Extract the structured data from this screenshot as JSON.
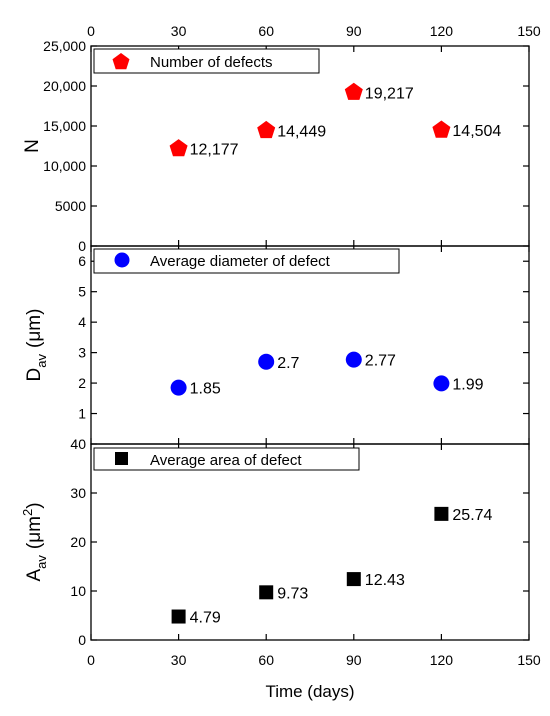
{
  "chart_data": [
    {
      "type": "scatter",
      "panel": "top",
      "ylabel": "N",
      "ylim": [
        0,
        25000
      ],
      "yticks": [
        {
          "value": 0,
          "label": "0"
        },
        {
          "value": 5000,
          "label": "5000"
        },
        {
          "value": 10000,
          "label": "10,000"
        },
        {
          "value": 15000,
          "label": "15,000"
        },
        {
          "value": 20000,
          "label": "20,000"
        },
        {
          "value": 25000,
          "label": "25,000"
        }
      ],
      "xlim": [
        0,
        150
      ],
      "xticks_top": [
        "0",
        "30",
        "60",
        "90",
        "120",
        "150"
      ],
      "legend": {
        "label": "Number of defects",
        "marker": "pentagon",
        "color": "#ff0000",
        "position": "top-left"
      },
      "series": [
        {
          "marker": "pentagon",
          "color": "#ff0000",
          "x": [
            30,
            60,
            90,
            120
          ],
          "y": [
            12177,
            14449,
            19217,
            14504
          ],
          "labels": [
            "12,177",
            "14,449",
            "19,217",
            "14,504"
          ]
        }
      ]
    },
    {
      "type": "scatter",
      "panel": "middle",
      "ylabel_main": "D",
      "ylabel_sub": "av",
      "ylabel_unit": "(μm)",
      "ylim": [
        0,
        6.5
      ],
      "yticks": [
        {
          "value": 1,
          "label": "1"
        },
        {
          "value": 2,
          "label": "2"
        },
        {
          "value": 3,
          "label": "3"
        },
        {
          "value": 4,
          "label": "4"
        },
        {
          "value": 5,
          "label": "5"
        },
        {
          "value": 6,
          "label": "6"
        }
      ],
      "xlim": [
        0,
        150
      ],
      "legend": {
        "label": "Average diameter of defect",
        "marker": "circle",
        "color": "#0000ff",
        "position": "top-left"
      },
      "series": [
        {
          "marker": "circle",
          "color": "#0000ff",
          "x": [
            30,
            60,
            90,
            120
          ],
          "y": [
            1.85,
            2.7,
            2.77,
            1.99
          ],
          "labels": [
            "1.85",
            "2.7",
            "2.77",
            "1.99"
          ]
        }
      ]
    },
    {
      "type": "scatter",
      "panel": "bottom",
      "ylabel_main": "A",
      "ylabel_sub": "av",
      "ylabel_unit": "(μm",
      "ylabel_sup": "2",
      "ylabel_close": ")",
      "ylim": [
        0,
        40
      ],
      "yticks": [
        {
          "value": 0,
          "label": "0"
        },
        {
          "value": 10,
          "label": "10"
        },
        {
          "value": 20,
          "label": "20"
        },
        {
          "value": 30,
          "label": "30"
        },
        {
          "value": 40,
          "label": "40"
        }
      ],
      "xlim": [
        0,
        150
      ],
      "xticks": [
        "0",
        "30",
        "60",
        "90",
        "120",
        "150"
      ],
      "xlabel": "Time (days)",
      "legend": {
        "label": "Average area of defect",
        "marker": "square",
        "color": "#000000",
        "position": "top-left"
      },
      "series": [
        {
          "marker": "square",
          "color": "#000000",
          "x": [
            30,
            60,
            90,
            120
          ],
          "y": [
            4.79,
            9.73,
            12.43,
            25.74
          ],
          "labels": [
            "4.79",
            "9.73",
            "12.43",
            "25.74"
          ]
        }
      ]
    }
  ]
}
